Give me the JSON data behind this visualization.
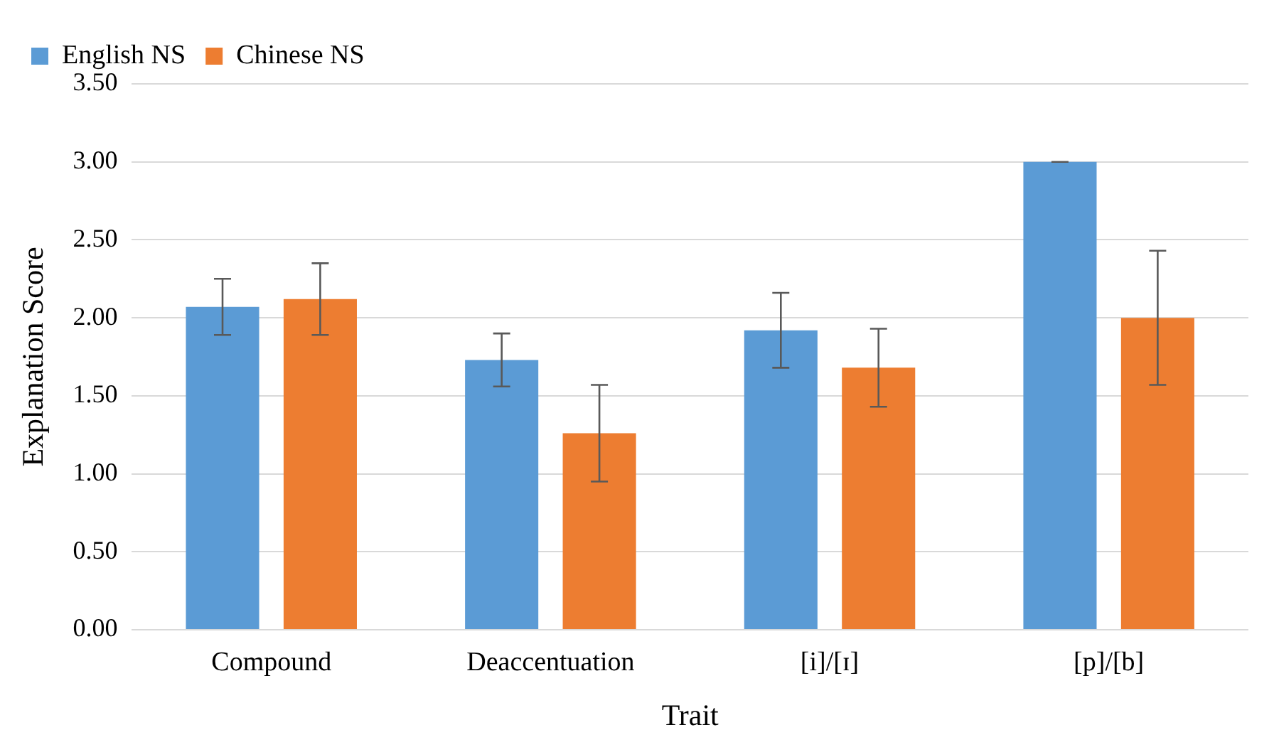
{
  "chart_data": {
    "type": "bar",
    "xlabel": "Trait",
    "ylabel": "Explanation Score",
    "categories": [
      "Compound",
      "Deaccentuation",
      "[i]/[ɪ]",
      "[p]/[b]"
    ],
    "series": [
      {
        "name": "English NS",
        "color": "#5b9bd5",
        "values": [
          2.07,
          1.73,
          1.92,
          3.0
        ],
        "errors": [
          0.18,
          0.17,
          0.24,
          0
        ]
      },
      {
        "name": "Chinese NS",
        "color": "#ed7d31",
        "values": [
          2.12,
          1.26,
          1.68,
          2.0
        ],
        "errors": [
          0.23,
          0.31,
          0.25,
          0.43
        ]
      }
    ],
    "ylim": [
      0,
      3.5
    ],
    "yticks": [
      {
        "value": 0,
        "label": "0.00"
      },
      {
        "value": 0.5,
        "label": "0.50"
      },
      {
        "value": 1,
        "label": "1.00"
      },
      {
        "value": 1.5,
        "label": "1.50"
      },
      {
        "value": 2,
        "label": "2.00"
      },
      {
        "value": 2.5,
        "label": "2.50"
      },
      {
        "value": 3,
        "label": "3.00"
      },
      {
        "value": 3.5,
        "label": "3.50"
      }
    ],
    "grid": "y",
    "legend": "top left"
  }
}
